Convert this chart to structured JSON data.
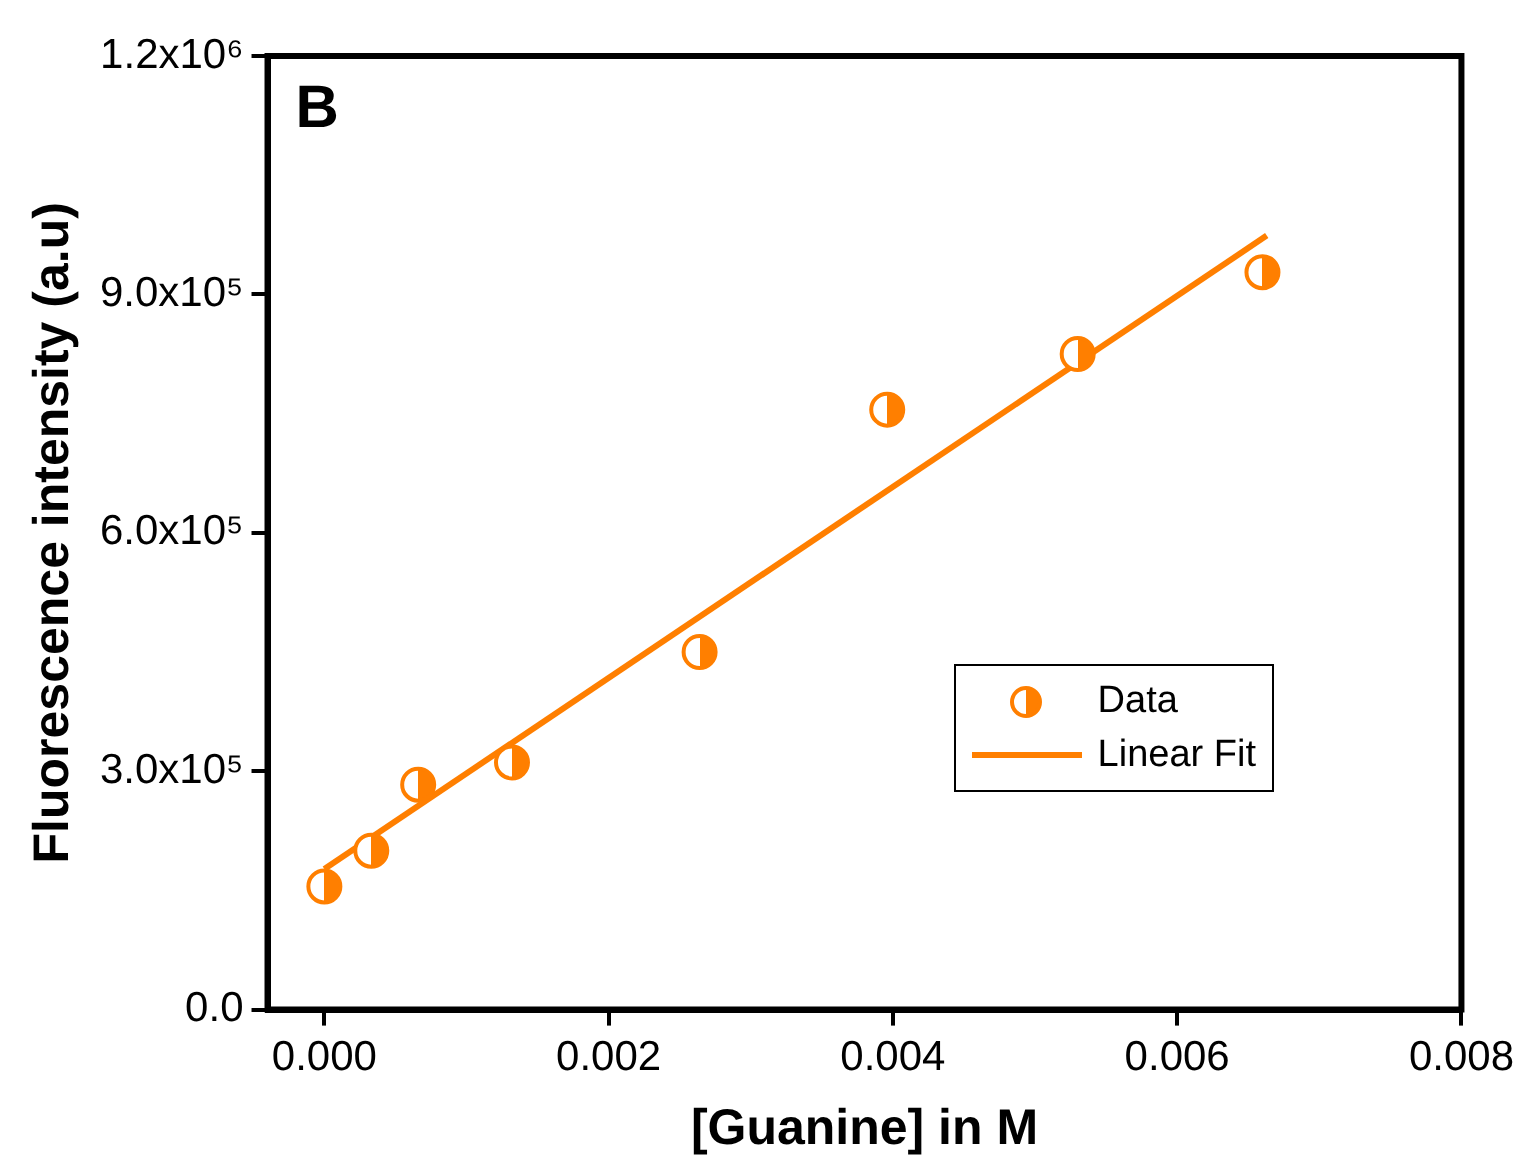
{
  "chart_data": {
    "type": "scatter",
    "xlabel": "[Guanine] in M",
    "ylabel": "Fluorescence intensity (a.u)",
    "annotations": [
      "B"
    ],
    "series": [
      {
        "name": "Data",
        "color": "#ff7f00",
        "marker": "circle",
        "x": [
          0,
          0.00033,
          0.00066,
          0.00132,
          0.00264,
          0.00396,
          0.0053,
          0.0066
        ],
        "values": [
          155000,
          200000,
          283000,
          311000,
          450000,
          755000,
          825000,
          928000
        ]
      },
      {
        "name": "Linear Fit",
        "type": "line",
        "color": "#ff7f00",
        "marker": "none",
        "line_style": "solid",
        "x": [
          0,
          0.00663
        ],
        "values": [
          177000,
          974000
        ]
      }
    ],
    "xlim": [
      -0.0004,
      0.008
    ],
    "xticks": [
      {
        "value": 0,
        "label": "0.000"
      },
      {
        "value": 0.002,
        "label": "0.002"
      },
      {
        "value": 0.004,
        "label": "0.004"
      },
      {
        "value": 0.006,
        "label": "0.006"
      },
      {
        "value": 0.008,
        "label": "0.008"
      }
    ],
    "ylim": [
      0,
      1200000
    ],
    "yticks": [
      {
        "value": 0,
        "label": "0.0"
      },
      {
        "value": 300000,
        "label": "3.0x10⁵"
      },
      {
        "value": 600000,
        "label": "6.0x10⁵"
      },
      {
        "value": 900000,
        "label": "9.0x10⁵"
      },
      {
        "value": 1200000,
        "label": "1.2x10⁶"
      }
    ],
    "grid": false,
    "legend": "bottom right"
  }
}
